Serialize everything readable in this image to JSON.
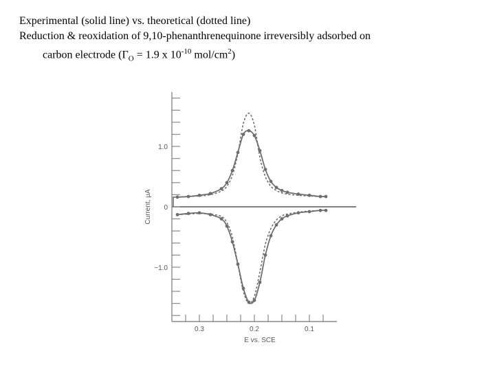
{
  "caption": {
    "line1": "Experimental (solid line) vs. theoretical (dotted line)",
    "line2": "Reduction & reoxidation of 9,10-phenanthrenequinone irreversibly adsorbed on",
    "line3_prefix": "carbon electrode (Γ",
    "line3_sub": "O",
    "line3_mid": " = 1.9 x 10",
    "line3_sup": "-10",
    "line3_unit": " mol/cm",
    "line3_sup2": "2",
    "line3_suffix": ")"
  },
  "chart_data": {
    "type": "line",
    "title": "",
    "xlabel": "E vs. SCE",
    "ylabel": "Current, μA",
    "xlim": [
      0.35,
      0.05
    ],
    "ylim": [
      -1.9,
      1.9
    ],
    "x_reversed": true,
    "xticks": [
      {
        "value": 0.3,
        "label": "0.3"
      },
      {
        "value": 0.2,
        "label": "0.2"
      },
      {
        "value": 0.1,
        "label": "0.1"
      }
    ],
    "yticks": [
      {
        "value": 1.0,
        "label": "1.0"
      },
      {
        "value": 0,
        "label": "0"
      },
      {
        "value": -1.0,
        "label": "−1.0"
      }
    ],
    "grid": false,
    "colors": {
      "experimental": "#6e6e6e",
      "theoretical": "#6e6e6e",
      "axis": "#888888",
      "markers": "#6e6e6e"
    },
    "series": [
      {
        "style": "solid",
        "role": "experimental",
        "segments": [
          {
            "x": [
              0.34,
              0.32,
              0.3,
              0.28,
              0.26,
              0.25,
              0.24,
              0.23,
              0.22,
              0.21,
              0.2,
              0.19,
              0.18,
              0.17,
              0.16,
              0.15,
              0.14,
              0.12,
              0.1,
              0.08,
              0.07
            ],
            "y": [
              0.16,
              0.17,
              0.19,
              0.22,
              0.3,
              0.4,
              0.6,
              0.9,
              1.2,
              1.26,
              1.18,
              0.93,
              0.62,
              0.42,
              0.32,
              0.27,
              0.24,
              0.21,
              0.19,
              0.17,
              0.17
            ]
          },
          {
            "x": [
              0.34,
              0.32,
              0.3,
              0.28,
              0.26,
              0.25,
              0.24,
              0.23,
              0.22,
              0.21,
              0.2,
              0.19,
              0.18,
              0.17,
              0.16,
              0.15,
              0.14,
              0.12,
              0.1,
              0.08,
              0.07
            ],
            "y": [
              -0.13,
              -0.11,
              -0.1,
              -0.13,
              -0.2,
              -0.32,
              -0.58,
              -0.95,
              -1.35,
              -1.58,
              -1.55,
              -1.25,
              -0.8,
              -0.48,
              -0.3,
              -0.2,
              -0.15,
              -0.1,
              -0.08,
              -0.06,
              -0.06
            ]
          }
        ]
      },
      {
        "style": "dotted",
        "role": "theoretical",
        "segments": [
          {
            "x": [
              0.34,
              0.32,
              0.3,
              0.28,
              0.26,
              0.25,
              0.24,
              0.23,
              0.22,
              0.21,
              0.2,
              0.19,
              0.18,
              0.17,
              0.16,
              0.15,
              0.14,
              0.12,
              0.1,
              0.08,
              0.07
            ],
            "y": [
              0.16,
              0.17,
              0.18,
              0.2,
              0.26,
              0.34,
              0.52,
              0.88,
              1.38,
              1.55,
              1.35,
              0.82,
              0.5,
              0.34,
              0.27,
              0.23,
              0.21,
              0.19,
              0.18,
              0.17,
              0.17
            ]
          },
          {
            "x": [
              0.34,
              0.32,
              0.3,
              0.28,
              0.26,
              0.25,
              0.24,
              0.23,
              0.22,
              0.21,
              0.2,
              0.19,
              0.18,
              0.17,
              0.16,
              0.15,
              0.14,
              0.12,
              0.1,
              0.08,
              0.07
            ],
            "y": [
              -0.13,
              -0.12,
              -0.11,
              -0.12,
              -0.16,
              -0.26,
              -0.5,
              -0.95,
              -1.4,
              -1.6,
              -1.48,
              -1.08,
              -0.62,
              -0.36,
              -0.22,
              -0.15,
              -0.12,
              -0.09,
              -0.07,
              -0.06,
              -0.06
            ]
          }
        ]
      }
    ],
    "markers": [
      {
        "x": [
          0.34,
          0.32,
          0.3,
          0.28,
          0.26,
          0.25,
          0.24,
          0.23,
          0.22,
          0.21,
          0.2,
          0.19,
          0.18,
          0.17,
          0.16,
          0.15,
          0.14,
          0.12,
          0.1,
          0.08,
          0.07
        ],
        "y": [
          0.16,
          0.17,
          0.19,
          0.22,
          0.3,
          0.4,
          0.6,
          0.9,
          1.2,
          1.26,
          1.18,
          0.93,
          0.62,
          0.42,
          0.32,
          0.27,
          0.24,
          0.21,
          0.19,
          0.17,
          0.17
        ]
      },
      {
        "x": [
          0.34,
          0.32,
          0.3,
          0.28,
          0.26,
          0.25,
          0.24,
          0.23,
          0.22,
          0.21,
          0.2,
          0.19,
          0.18,
          0.17,
          0.16,
          0.15,
          0.14,
          0.12,
          0.1,
          0.08,
          0.07
        ],
        "y": [
          -0.13,
          -0.11,
          -0.1,
          -0.13,
          -0.2,
          -0.32,
          -0.58,
          -0.95,
          -1.35,
          -1.58,
          -1.55,
          -1.25,
          -0.8,
          -0.48,
          -0.3,
          -0.2,
          -0.15,
          -0.1,
          -0.08,
          -0.06,
          -0.06
        ]
      }
    ]
  }
}
